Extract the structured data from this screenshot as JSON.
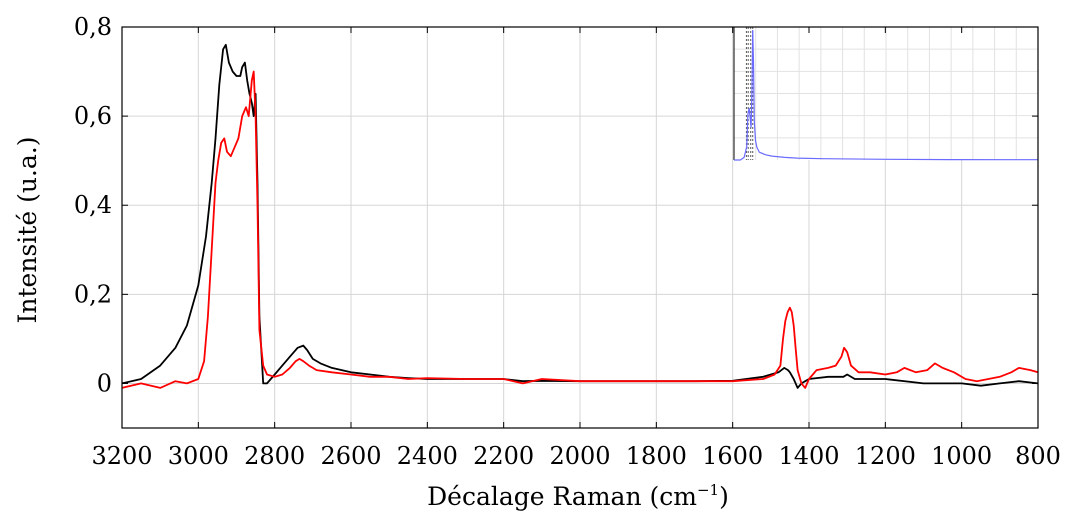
{
  "chart_data": {
    "type": "line",
    "xlabel": "Décalage Raman (cm",
    "xlabel_sup": "−1",
    "xlabel_close": ")",
    "ylabel": "Intensité (u.a.)",
    "xlim": [
      3200,
      800
    ],
    "ylim": [
      -0.1,
      0.8
    ],
    "grid": true,
    "x_ticks": [
      "3200",
      "3000",
      "2800",
      "2600",
      "2400",
      "2200",
      "2000",
      "1800",
      "1600",
      "1400",
      "1200",
      "1000",
      "800"
    ],
    "x_tick_values": [
      3200,
      3000,
      2800,
      2600,
      2400,
      2200,
      2000,
      1800,
      1600,
      1400,
      1200,
      1000,
      800
    ],
    "y_ticks": [
      "0",
      "0,2",
      "0,4",
      "0,6",
      "0,8"
    ],
    "y_tick_values": [
      0,
      0.2,
      0.4,
      0.6,
      0.8
    ],
    "series": [
      {
        "color": "#000000",
        "x": [
          3200,
          3150,
          3100,
          3060,
          3030,
          3000,
          2980,
          2965,
          2955,
          2945,
          2935,
          2928,
          2920,
          2910,
          2900,
          2890,
          2885,
          2878,
          2872,
          2866,
          2860,
          2855,
          2850,
          2845,
          2840,
          2830,
          2820,
          2800,
          2780,
          2760,
          2740,
          2725,
          2715,
          2700,
          2680,
          2650,
          2600,
          2550,
          2500,
          2450,
          2400,
          2300,
          2200,
          2150,
          2100,
          2000,
          1900,
          1800,
          1700,
          1600,
          1520,
          1480,
          1465,
          1455,
          1450,
          1440,
          1430,
          1420,
          1410,
          1400,
          1380,
          1350,
          1320,
          1310,
          1300,
          1280,
          1250,
          1200,
          1100,
          1000,
          950,
          900,
          850,
          800
        ],
        "y": [
          0.0,
          0.01,
          0.04,
          0.08,
          0.13,
          0.22,
          0.33,
          0.45,
          0.55,
          0.67,
          0.75,
          0.76,
          0.72,
          0.7,
          0.69,
          0.69,
          0.71,
          0.72,
          0.68,
          0.65,
          0.63,
          0.6,
          0.65,
          0.45,
          0.15,
          0.0,
          0.0,
          0.02,
          0.04,
          0.06,
          0.08,
          0.085,
          0.075,
          0.055,
          0.045,
          0.035,
          0.025,
          0.02,
          0.015,
          0.012,
          0.01,
          0.01,
          0.01,
          0.005,
          0.006,
          0.005,
          0.005,
          0.005,
          0.005,
          0.006,
          0.015,
          0.025,
          0.035,
          0.03,
          0.025,
          0.01,
          -0.01,
          0.0,
          0.005,
          0.01,
          0.012,
          0.015,
          0.015,
          0.015,
          0.02,
          0.01,
          0.01,
          0.01,
          0.0,
          0.0,
          -0.005,
          0.0,
          0.005,
          0.0
        ]
      },
      {
        "color": "#ff0000",
        "x": [
          3200,
          3150,
          3100,
          3060,
          3030,
          3000,
          2985,
          2975,
          2965,
          2955,
          2948,
          2940,
          2932,
          2925,
          2915,
          2905,
          2895,
          2885,
          2875,
          2868,
          2860,
          2855,
          2850,
          2845,
          2840,
          2830,
          2820,
          2800,
          2780,
          2760,
          2745,
          2735,
          2725,
          2710,
          2690,
          2650,
          2600,
          2550,
          2500,
          2450,
          2400,
          2300,
          2200,
          2150,
          2100,
          2000,
          1900,
          1800,
          1700,
          1600,
          1520,
          1490,
          1475,
          1468,
          1462,
          1456,
          1450,
          1445,
          1440,
          1435,
          1430,
          1420,
          1410,
          1400,
          1380,
          1350,
          1330,
          1315,
          1308,
          1300,
          1290,
          1270,
          1240,
          1200,
          1170,
          1150,
          1120,
          1090,
          1070,
          1050,
          1020,
          990,
          960,
          930,
          900,
          870,
          850,
          820,
          800
        ],
        "y": [
          -0.01,
          0.0,
          -0.01,
          0.005,
          0.0,
          0.01,
          0.05,
          0.15,
          0.3,
          0.45,
          0.5,
          0.54,
          0.55,
          0.52,
          0.51,
          0.53,
          0.55,
          0.6,
          0.62,
          0.6,
          0.68,
          0.7,
          0.6,
          0.4,
          0.12,
          0.04,
          0.02,
          0.015,
          0.02,
          0.035,
          0.05,
          0.055,
          0.05,
          0.04,
          0.03,
          0.025,
          0.02,
          0.015,
          0.015,
          0.01,
          0.012,
          0.01,
          0.01,
          0.0,
          0.01,
          0.005,
          0.005,
          0.005,
          0.005,
          0.005,
          0.01,
          0.02,
          0.04,
          0.1,
          0.14,
          0.16,
          0.17,
          0.16,
          0.13,
          0.08,
          0.03,
          0.0,
          -0.01,
          0.01,
          0.03,
          0.035,
          0.04,
          0.06,
          0.08,
          0.07,
          0.04,
          0.025,
          0.025,
          0.02,
          0.025,
          0.035,
          0.025,
          0.03,
          0.045,
          0.035,
          0.025,
          0.01,
          0.005,
          0.01,
          0.015,
          0.025,
          0.035,
          0.03,
          0.025
        ]
      }
    ],
    "inset": {
      "color": "#6b6bff",
      "reference_line_color": "#555555",
      "xlim": [
        3200,
        800
      ],
      "ylim": [
        0,
        1
      ],
      "x": [
        3200,
        3150,
        3120,
        3100,
        3090,
        3080,
        3075,
        3065,
        3058,
        3052,
        3046,
        3040,
        3030,
        3020,
        3000,
        2950,
        2900,
        2800,
        2700,
        2500,
        2000,
        1500,
        1000,
        800
      ],
      "y": [
        0.0,
        0.0,
        0.02,
        0.1,
        0.35,
        0.4,
        0.35,
        0.25,
        0.55,
        1.0,
        0.75,
        0.3,
        0.15,
        0.1,
        0.06,
        0.04,
        0.03,
        0.02,
        0.015,
        0.01,
        0.005,
        0.003,
        0.002,
        0.002
      ],
      "reference_lines": [
        3102,
        3088,
        3068,
        3052
      ]
    }
  }
}
